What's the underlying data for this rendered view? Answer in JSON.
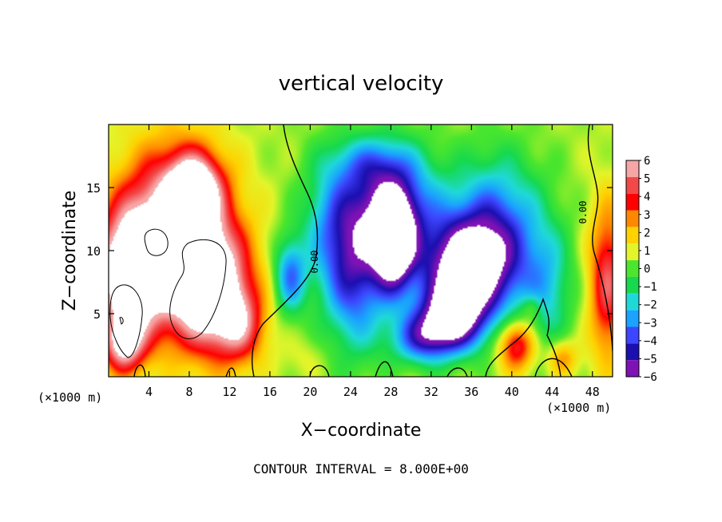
{
  "chart_data": {
    "type": "heatmap",
    "title": "vertical velocity",
    "xlabel": "X−coordinate",
    "ylabel": "Z−coordinate",
    "x_unit_label": "(×1000 m)",
    "x_unit_label_right": "(×1000 m)",
    "xlim": [
      0,
      50
    ],
    "ylim": [
      0,
      20
    ],
    "xticks": [
      4,
      8,
      12,
      16,
      20,
      24,
      28,
      32,
      36,
      40,
      44,
      48
    ],
    "yticks": [
      5,
      10,
      15
    ],
    "xtick_labels": [
      "4",
      "8",
      "12",
      "16",
      "20",
      "24",
      "28",
      "32",
      "36",
      "40",
      "44",
      "48"
    ],
    "ytick_labels": [
      "5",
      "10",
      "15"
    ],
    "colorbar": {
      "levels": [
        6,
        5,
        4,
        3,
        2,
        1,
        0,
        -1,
        -2,
        -3,
        -4,
        -5,
        -6
      ],
      "labels": [
        "6",
        "5",
        "4",
        "3",
        "2",
        "1",
        "0",
        "−1",
        "−2",
        "−3",
        "−4",
        "−5",
        "−6"
      ],
      "colors": [
        "#f7a6a6",
        "#f24848",
        "#ff0000",
        "#ff8800",
        "#ffd200",
        "#e3f52a",
        "#4be62d",
        "#16d94e",
        "#1fd9d9",
        "#1aa3ff",
        "#3c46ff",
        "#1c0fb0",
        "#7e12b4"
      ]
    },
    "contour_labels": [
      "0.00",
      "0.00"
    ],
    "footer": "CONTOUR INTERVAL = 8.000E+00",
    "blobs": [
      {
        "x": 6.5,
        "z": 11.5,
        "rx": 5.2,
        "rz": 6.5,
        "v": 6.8
      },
      {
        "x": 8.5,
        "z": 15.0,
        "rx": 2.6,
        "rz": 2.6,
        "v": 5.5
      },
      {
        "x": 2.0,
        "z": 8.0,
        "rx": 3.2,
        "rz": 5.0,
        "v": 7.5
      },
      {
        "x": 10.0,
        "z": 7.0,
        "rx": 4.0,
        "rz": 5.0,
        "v": 7.0
      },
      {
        "x": 1.5,
        "z": 2.5,
        "rx": 2.0,
        "rz": 2.2,
        "v": 5.0
      },
      {
        "x": 13.0,
        "z": 4.0,
        "rx": 2.5,
        "rz": 3.0,
        "v": 3.5
      },
      {
        "x": 28.0,
        "z": 13.5,
        "rx": 4.5,
        "rz": 4.5,
        "v": -5.5
      },
      {
        "x": 28.3,
        "z": 10.5,
        "rx": 2.0,
        "rz": 3.8,
        "v": -7.5
      },
      {
        "x": 35.5,
        "z": 8.5,
        "rx": 4.5,
        "rz": 4.0,
        "v": -8.0
      },
      {
        "x": 34.0,
        "z": 4.5,
        "rx": 3.2,
        "rz": 2.5,
        "v": -6.5
      },
      {
        "x": 24.5,
        "z": 8.0,
        "rx": 3.0,
        "rz": 6.0,
        "v": -4.5
      },
      {
        "x": 18.0,
        "z": 8.0,
        "rx": 1.6,
        "rz": 3.0,
        "v": -4.0
      },
      {
        "x": 31.0,
        "z": 3.0,
        "rx": 3.0,
        "rz": 2.0,
        "v": -4.0
      },
      {
        "x": 38.5,
        "z": 12.0,
        "rx": 4.5,
        "rz": 5.5,
        "v": -4.0
      },
      {
        "x": 22.0,
        "z": 12.0,
        "rx": 3.0,
        "rz": 5.5,
        "v": -2.5
      },
      {
        "x": 43.5,
        "z": 7.0,
        "rx": 2.5,
        "rz": 5.0,
        "v": -2.5
      },
      {
        "x": 26.0,
        "z": 17.0,
        "rx": 4.0,
        "rz": 2.0,
        "v": -1.8
      },
      {
        "x": 40.5,
        "z": 2.5,
        "rx": 1.8,
        "rz": 2.0,
        "v": 4.5
      },
      {
        "x": 45.0,
        "z": 1.5,
        "rx": 1.5,
        "rz": 1.5,
        "v": 2.5
      },
      {
        "x": 49.5,
        "z": 7.5,
        "rx": 1.8,
        "rz": 6.0,
        "v": 4.5
      },
      {
        "x": 42.0,
        "z": 5.5,
        "rx": 1.0,
        "rz": 1.0,
        "v": 1.5
      },
      {
        "x": 19.5,
        "z": 1.5,
        "rx": 2.0,
        "rz": 1.5,
        "v": 0.5
      }
    ]
  }
}
